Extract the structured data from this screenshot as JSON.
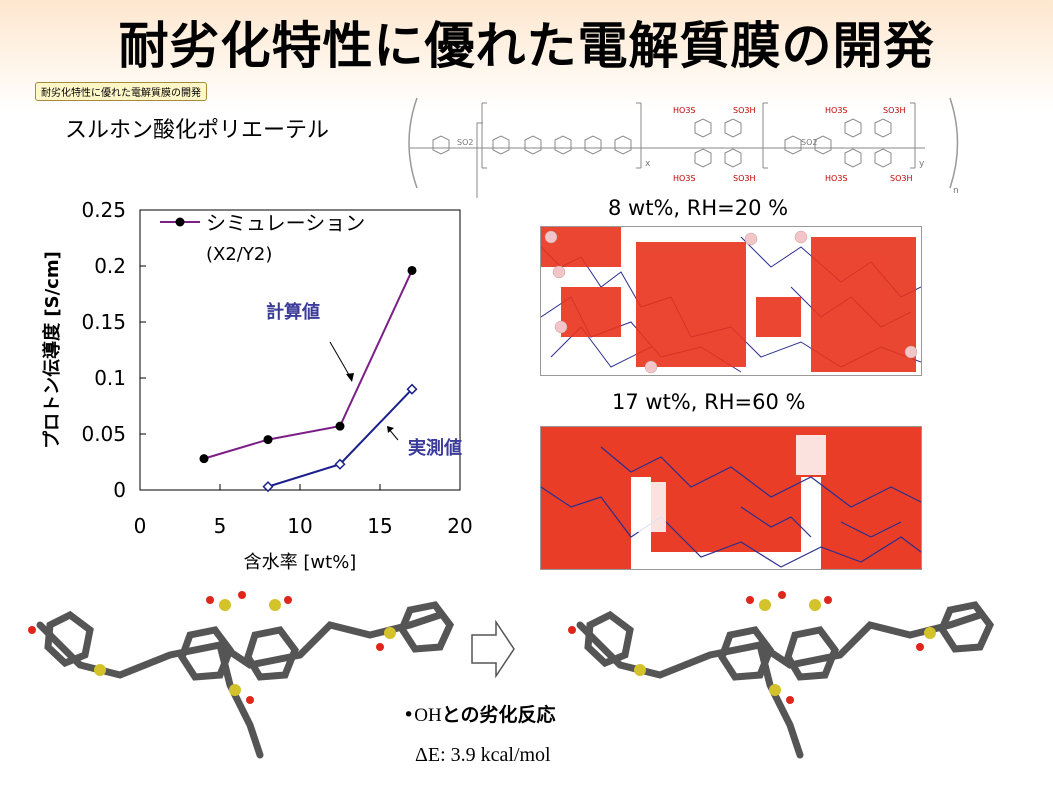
{
  "title": "耐劣化特性に優れた電解質膜の開発",
  "tag": "耐劣化特性に優れた電解質膜の開発",
  "polymer_label": "スルホン酸化ポリエーテル",
  "chemical_labels": {
    "so3h": "SO3H",
    "ho3s": "HO3S",
    "so2": "SO2",
    "sub_x": "x",
    "sub_y": "y",
    "sub_n": "n"
  },
  "simulation_images": [
    {
      "label": "8 wt%, RH=20 %"
    },
    {
      "label": "17 wt%, RH=60 %"
    }
  ],
  "reaction_text": {
    "bullet": "•",
    "oh": "OH",
    "rest": "との劣化反応"
  },
  "energy_text": "ΔE: 3.9 kcal/mol",
  "colors": {
    "series_sim": "#7b1f86",
    "series_exp": "#1a1f8c",
    "network": "#e8331c",
    "annotation": "#3b3b9a"
  },
  "chart_data": {
    "type": "line",
    "ylabel": "プロトン伝導度 [S/cm]",
    "xlabel": "含水率 [wt%]",
    "xlim": [
      0,
      20
    ],
    "ylim": [
      0,
      0.25
    ],
    "xticks": [
      "0",
      "5",
      "10",
      "15",
      "20"
    ],
    "yticks": [
      "0",
      "0.05",
      "0.1",
      "0.15",
      "0.2",
      "0.25"
    ],
    "legend_line1": "シミュレーション",
    "legend_line2": "(X2/Y2)",
    "annotation_calc": "計算値",
    "annotation_meas": "実測値",
    "series": [
      {
        "name": "シミュレーション (X2/Y2)",
        "marker": "filled-circle",
        "x": [
          4,
          8,
          12.5,
          17
        ],
        "y": [
          0.028,
          0.045,
          0.057,
          0.196
        ]
      },
      {
        "marker": "open-diamond",
        "x": [
          8,
          12.5,
          17
        ],
        "y": [
          0.003,
          0.023,
          0.09
        ]
      }
    ]
  }
}
